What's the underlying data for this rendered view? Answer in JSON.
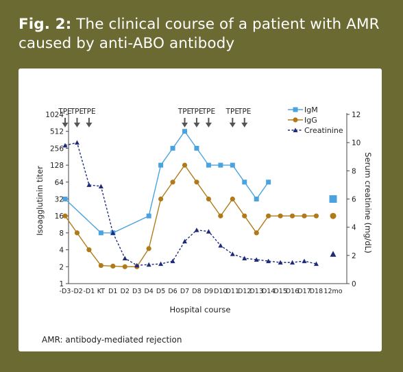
{
  "header": {
    "fig_label": "Fig. 2:",
    "title_text": "The clinical course of a patient with AMR caused by anti-ABO antibody"
  },
  "footnote": "AMR: antibody-mediated rejection",
  "colors": {
    "frame": "#6b6a32",
    "igm": "#4aa3df",
    "igg": "#b07a1a",
    "creatinine": "#1e2a7a",
    "tpe_arrow": "#555555"
  },
  "chart_data": {
    "type": "line",
    "xlabel": "Hospital course",
    "ylabel_left": "Isoagglutinin titer",
    "ylabel_right": "Serum creatinine (mg/dL)",
    "categories": [
      "-D3",
      "-D2",
      "-D1",
      "KT",
      "D1",
      "D2",
      "D3",
      "D4",
      "D5",
      "D6",
      "D7",
      "D8",
      "D9",
      "D10",
      "D11",
      "D12",
      "D13",
      "D14",
      "D15",
      "D16",
      "D17",
      "D18",
      "12mo"
    ],
    "y_left_ticks": [
      1,
      2,
      4,
      8,
      16,
      32,
      64,
      128,
      256,
      512,
      1024
    ],
    "y_left_scale": "log2",
    "y_right_ticks": [
      0,
      2,
      4,
      6,
      8,
      10,
      12
    ],
    "y_right_range": [
      0,
      12
    ],
    "grid": false,
    "legend_position": "top-right",
    "tpe_label": "TPE",
    "tpe_days": [
      "-D3",
      "-D2",
      "-D1",
      "D7",
      "D8",
      "D9",
      "D11",
      "D12"
    ],
    "series": [
      {
        "name": "IgM",
        "axis": "left",
        "style": "solid-square",
        "points": [
          [
            "-D3",
            32
          ],
          [
            "KT",
            8
          ],
          [
            "D1",
            8
          ],
          [
            "D4",
            16
          ],
          [
            "D5",
            128
          ],
          [
            "D6",
            256
          ],
          [
            "D7",
            512
          ],
          [
            "D8",
            256
          ],
          [
            "D9",
            128
          ],
          [
            "D10",
            128
          ],
          [
            "D11",
            128
          ],
          [
            "D12",
            64
          ],
          [
            "D13",
            32
          ],
          [
            "D14",
            64
          ]
        ],
        "followup": [
          "12mo",
          32
        ]
      },
      {
        "name": "IgG",
        "axis": "left",
        "style": "solid-circle",
        "points": [
          [
            "-D3",
            16
          ],
          [
            "-D2",
            8
          ],
          [
            "-D1",
            4
          ],
          [
            "KT",
            2.1
          ],
          [
            "D1",
            2.05
          ],
          [
            "D2",
            2
          ],
          [
            "D3",
            2
          ],
          [
            "D4",
            4.2
          ],
          [
            "D5",
            32
          ],
          [
            "D6",
            64
          ],
          [
            "D7",
            128
          ],
          [
            "D8",
            64
          ],
          [
            "D9",
            32
          ],
          [
            "D10",
            16
          ],
          [
            "D11",
            32
          ],
          [
            "D12",
            16
          ],
          [
            "D13",
            8
          ],
          [
            "D14",
            16
          ],
          [
            "D15",
            16
          ],
          [
            "D16",
            16
          ],
          [
            "D17",
            16
          ],
          [
            "D18",
            16
          ]
        ],
        "followup": [
          "12mo",
          16
        ]
      },
      {
        "name": "Creatinine",
        "axis": "right",
        "style": "dashed-triangle",
        "points": [
          [
            "-D3",
            9.8
          ],
          [
            "-D2",
            10
          ],
          [
            "-D1",
            7
          ],
          [
            "KT",
            6.9
          ],
          [
            "D1",
            3.6
          ],
          [
            "D2",
            1.8
          ],
          [
            "D3",
            1.3
          ],
          [
            "D4",
            1.35
          ],
          [
            "D5",
            1.4
          ],
          [
            "D6",
            1.6
          ],
          [
            "D7",
            3
          ],
          [
            "D8",
            3.8
          ],
          [
            "D9",
            3.7
          ],
          [
            "D10",
            2.7
          ],
          [
            "D11",
            2.1
          ],
          [
            "D12",
            1.8
          ],
          [
            "D13",
            1.7
          ],
          [
            "D14",
            1.6
          ],
          [
            "D15",
            1.5
          ],
          [
            "D16",
            1.5
          ],
          [
            "D17",
            1.6
          ],
          [
            "D18",
            1.4
          ]
        ],
        "followup": [
          "12mo",
          2.1
        ]
      }
    ]
  }
}
